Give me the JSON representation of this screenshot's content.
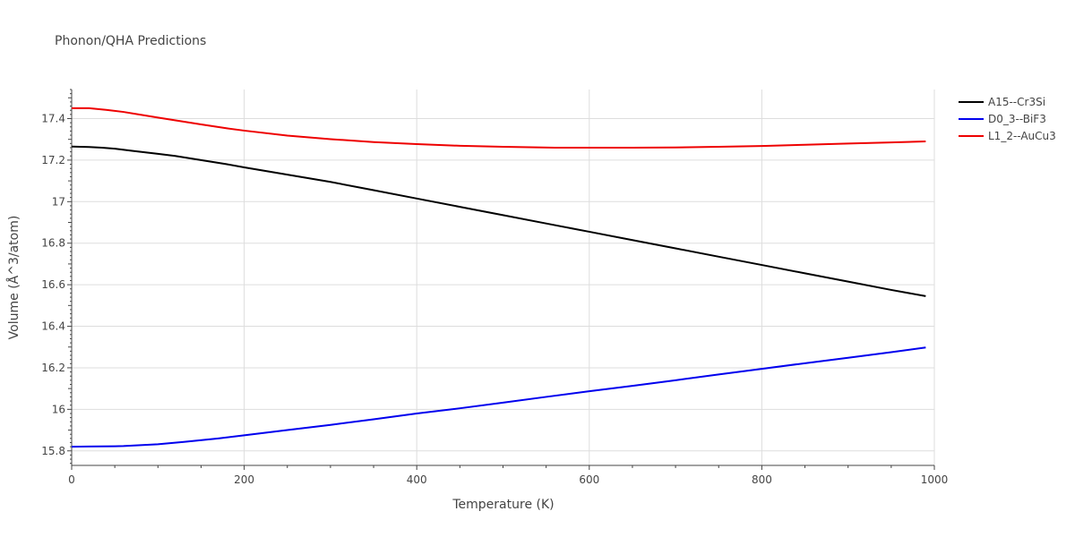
{
  "chart_data": {
    "type": "line",
    "title": "Phonon/QHA Predictions",
    "xlabel": "Temperature (K)",
    "ylabel": "Volume (Å^3/atom)",
    "xlim": [
      0,
      1000
    ],
    "ylim": [
      15.73,
      17.54
    ],
    "xticks": [
      0,
      200,
      400,
      600,
      800,
      1000
    ],
    "xtick_labels": [
      "0",
      "200",
      "400",
      "600",
      "800",
      "1000"
    ],
    "yticks": [
      15.8,
      16.0,
      16.2,
      16.4,
      16.6,
      16.8,
      17.0,
      17.2,
      17.4
    ],
    "ytick_labels": [
      "15.8",
      "16",
      "16.2",
      "16.4",
      "16.6",
      "16.8",
      "17",
      "17.2",
      "17.4"
    ],
    "grid": true,
    "legend_position": "top-right",
    "series": [
      {
        "name": "A15--Cr3Si",
        "color": "#000000",
        "x": [
          0,
          20,
          35,
          50,
          70,
          100,
          120,
          150,
          180,
          200,
          250,
          300,
          350,
          400,
          450,
          500,
          550,
          600,
          650,
          700,
          750,
          800,
          850,
          900,
          950,
          990
        ],
        "y": [
          17.265,
          17.263,
          17.26,
          17.255,
          17.245,
          17.23,
          17.22,
          17.2,
          17.18,
          17.165,
          17.13,
          17.095,
          17.055,
          17.015,
          16.975,
          16.935,
          16.895,
          16.855,
          16.815,
          16.775,
          16.735,
          16.695,
          16.655,
          16.615,
          16.575,
          16.545
        ]
      },
      {
        "name": "D0_3--BiF3",
        "color": "#0000ee",
        "x": [
          0,
          20,
          50,
          60,
          100,
          130,
          170,
          200,
          250,
          300,
          350,
          400,
          450,
          500,
          550,
          600,
          650,
          700,
          750,
          800,
          850,
          900,
          950,
          990
        ],
        "y": [
          15.82,
          15.821,
          15.822,
          15.823,
          15.832,
          15.843,
          15.86,
          15.875,
          15.9,
          15.925,
          15.952,
          15.98,
          16.005,
          16.032,
          16.06,
          16.087,
          16.113,
          16.14,
          16.168,
          16.195,
          16.222,
          16.248,
          16.275,
          16.298
        ]
      },
      {
        "name": "L1_2--AuCu3",
        "color": "#ee0000",
        "x": [
          0,
          20,
          40,
          60,
          100,
          150,
          180,
          200,
          250,
          300,
          350,
          400,
          450,
          500,
          560,
          600,
          650,
          700,
          750,
          800,
          850,
          900,
          950,
          990
        ],
        "y": [
          17.45,
          17.45,
          17.442,
          17.432,
          17.405,
          17.372,
          17.353,
          17.342,
          17.318,
          17.301,
          17.287,
          17.277,
          17.269,
          17.264,
          17.26,
          17.26,
          17.26,
          17.261,
          17.264,
          17.268,
          17.274,
          17.28,
          17.285,
          17.29
        ]
      }
    ]
  }
}
